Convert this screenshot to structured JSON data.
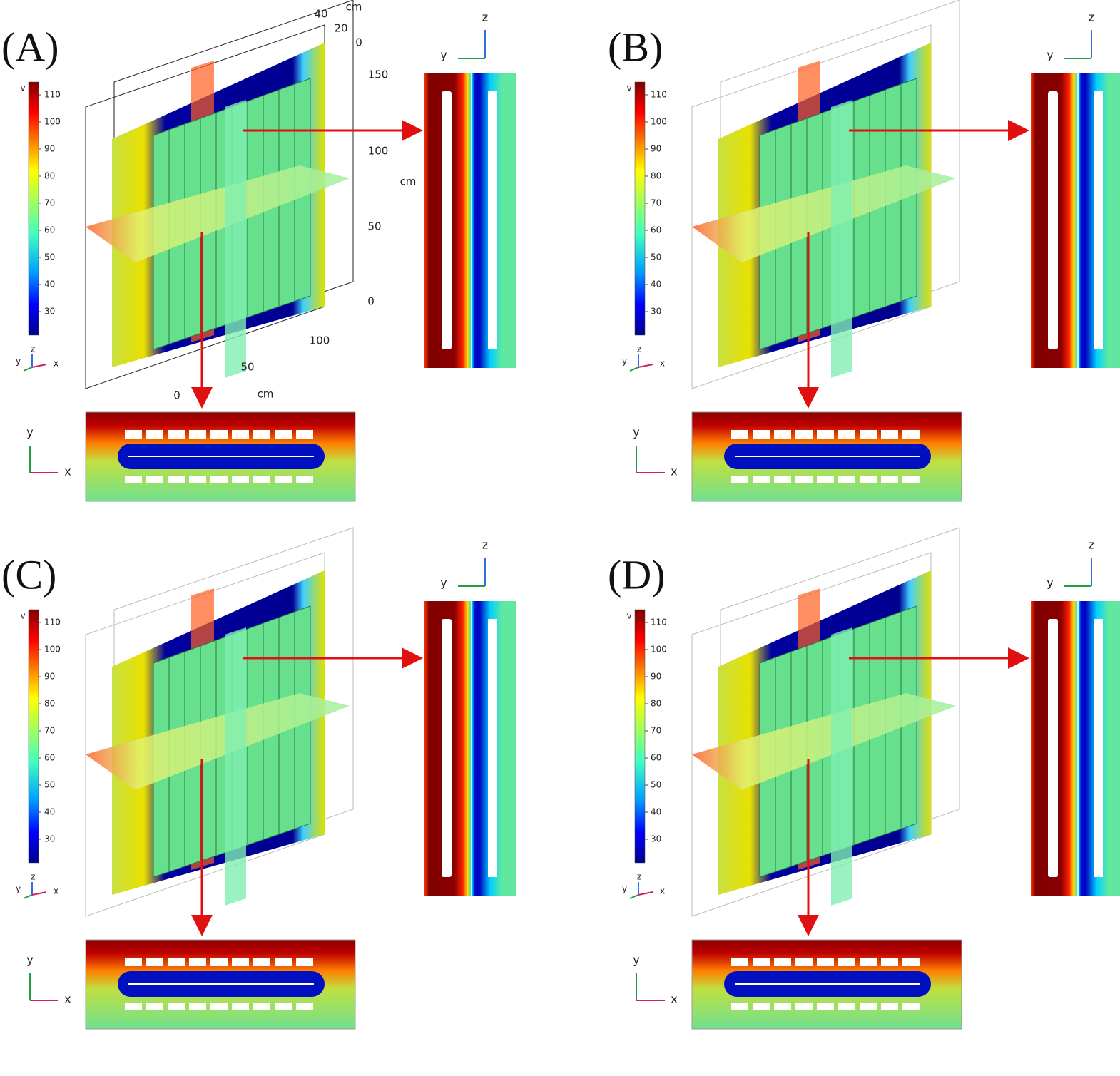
{
  "panels": [
    {
      "label": "(A)",
      "colorbar": {
        "unit": "v",
        "ticks": [
          110,
          100,
          90,
          80,
          70,
          60,
          50,
          40,
          30
        ]
      },
      "triad": {
        "y": "y",
        "z": "z",
        "x": "x"
      },
      "side_axes": {
        "z": "z",
        "y": "y"
      },
      "bottom_axes": {
        "y": "y",
        "x": "x"
      },
      "dims": {
        "top_unit": "cm",
        "top_ticks": [
          "40",
          "20",
          "0"
        ],
        "side_ticks": [
          "150",
          "100",
          "50",
          "0"
        ],
        "side_unit": "cm",
        "bottom_ticks": [
          "100",
          "50",
          "0"
        ],
        "bottom_unit": "cm"
      }
    },
    {
      "label": "(B)",
      "colorbar": {
        "unit": "v",
        "ticks": [
          110,
          100,
          90,
          80,
          70,
          60,
          50,
          40,
          30
        ]
      },
      "triad": {
        "y": "y",
        "z": "z",
        "x": "x"
      },
      "side_axes": {
        "z": "z",
        "y": "y"
      },
      "bottom_axes": {
        "y": "y",
        "x": "x"
      }
    },
    {
      "label": "(C)",
      "colorbar": {
        "unit": "v",
        "ticks": [
          110,
          100,
          90,
          80,
          70,
          60,
          50,
          40,
          30
        ]
      },
      "triad": {
        "y": "y",
        "z": "z",
        "x": "x"
      },
      "side_axes": {
        "z": "z",
        "y": "y"
      },
      "bottom_axes": {
        "y": "y",
        "x": "x"
      }
    },
    {
      "label": "(D)",
      "colorbar": {
        "unit": "v",
        "ticks": [
          110,
          100,
          90,
          80,
          70,
          60,
          50,
          40,
          30
        ]
      },
      "triad": {
        "y": "y",
        "z": "z",
        "x": "x"
      },
      "side_axes": {
        "z": "z",
        "y": "y"
      },
      "bottom_axes": {
        "y": "y",
        "x": "x"
      }
    }
  ]
}
